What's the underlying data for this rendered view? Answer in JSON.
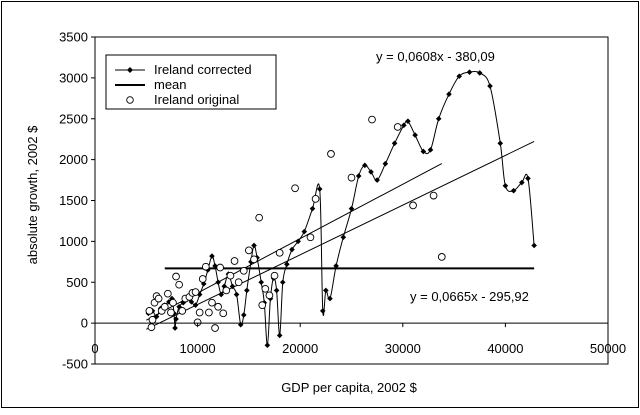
{
  "chart_data": {
    "type": "scatter",
    "title": "",
    "xlabel": "GDP per capita, 2002 $",
    "ylabel": "absolute growth, 2002 $",
    "xlim": [
      0,
      50000
    ],
    "ylim": [
      -500,
      3500
    ],
    "xticks": [
      0,
      10000,
      20000,
      30000,
      40000,
      50000
    ],
    "yticks": [
      -500,
      0,
      500,
      1000,
      1500,
      2000,
      2500,
      3000,
      3500
    ],
    "xtick_labels": [
      "0",
      "10000",
      "20000",
      "30000",
      "40000",
      "50000"
    ],
    "ytick_labels": [
      "-500",
      "0",
      "500",
      "1000",
      "1500",
      "2000",
      "2500",
      "3000",
      "3500"
    ],
    "grid": false,
    "legend_position": "top-left",
    "legend": {
      "corrected": "Ireland corrected",
      "mean": "mean",
      "original": "Ireland original"
    },
    "annotations": {
      "eq_top": "y = 0,0608x - 380,09",
      "eq_bottom": "y = 0,0665x - 295,92"
    },
    "series": [
      {
        "name": "Ireland corrected",
        "marker": "diamond",
        "line": "smooth",
        "points": [
          [
            5200,
            120
          ],
          [
            5600,
            150
          ],
          [
            6000,
            80
          ],
          [
            6400,
            180
          ],
          [
            6800,
            220
          ],
          [
            7200,
            260
          ],
          [
            7500,
            300
          ],
          [
            7700,
            120
          ],
          [
            7800,
            -60
          ],
          [
            7900,
            50
          ],
          [
            8200,
            200
          ],
          [
            8600,
            250
          ],
          [
            9000,
            300
          ],
          [
            9400,
            260
          ],
          [
            9800,
            220
          ],
          [
            10200,
            350
          ],
          [
            10600,
            480
          ],
          [
            11000,
            650
          ],
          [
            11400,
            820
          ],
          [
            11700,
            700
          ],
          [
            12000,
            500
          ],
          [
            12300,
            350
          ],
          [
            12600,
            450
          ],
          [
            13000,
            600
          ],
          [
            13400,
            450
          ],
          [
            13800,
            350
          ],
          [
            14200,
            -20
          ],
          [
            14500,
            100
          ],
          [
            14800,
            400
          ],
          [
            15200,
            750
          ],
          [
            15500,
            950
          ],
          [
            15800,
            800
          ],
          [
            16200,
            500
          ],
          [
            16500,
            250
          ],
          [
            16800,
            -270
          ],
          [
            17100,
            300
          ],
          [
            17400,
            550
          ],
          [
            17700,
            400
          ],
          [
            18000,
            -150
          ],
          [
            18300,
            500
          ],
          [
            18700,
            720
          ],
          [
            19200,
            900
          ],
          [
            19800,
            1000
          ],
          [
            20400,
            1120
          ],
          [
            21200,
            1400
          ],
          [
            21900,
            1640
          ],
          [
            22200,
            150
          ],
          [
            22500,
            400
          ],
          [
            22900,
            300
          ],
          [
            23500,
            700
          ],
          [
            24200,
            1050
          ],
          [
            25000,
            1400
          ],
          [
            25700,
            1800
          ],
          [
            26300,
            1930
          ],
          [
            26900,
            1850
          ],
          [
            27500,
            1750
          ],
          [
            28300,
            1950
          ],
          [
            29200,
            2200
          ],
          [
            30100,
            2420
          ],
          [
            30500,
            2470
          ],
          [
            31200,
            2300
          ],
          [
            32000,
            2100
          ],
          [
            32700,
            2120
          ],
          [
            33500,
            2500
          ],
          [
            34500,
            2800
          ],
          [
            35500,
            3020
          ],
          [
            36500,
            3070
          ],
          [
            37500,
            3060
          ],
          [
            38500,
            2900
          ],
          [
            39500,
            2200
          ],
          [
            40000,
            1680
          ],
          [
            40800,
            1620
          ],
          [
            41600,
            1720
          ],
          [
            42200,
            1770
          ],
          [
            42800,
            950
          ]
        ]
      },
      {
        "name": "Ireland original",
        "marker": "circle",
        "line": "none",
        "points": [
          [
            5300,
            150
          ],
          [
            5500,
            -50
          ],
          [
            5600,
            40
          ],
          [
            5800,
            250
          ],
          [
            6000,
            330
          ],
          [
            6200,
            300
          ],
          [
            6500,
            150
          ],
          [
            6800,
            200
          ],
          [
            7100,
            360
          ],
          [
            7400,
            130
          ],
          [
            7600,
            250
          ],
          [
            7900,
            570
          ],
          [
            8200,
            470
          ],
          [
            8500,
            150
          ],
          [
            8800,
            300
          ],
          [
            9200,
            320
          ],
          [
            9500,
            370
          ],
          [
            9800,
            380
          ],
          [
            10000,
            10
          ],
          [
            10200,
            130
          ],
          [
            10500,
            540
          ],
          [
            10800,
            690
          ],
          [
            11100,
            130
          ],
          [
            11400,
            250
          ],
          [
            11700,
            -60
          ],
          [
            12000,
            200
          ],
          [
            12200,
            680
          ],
          [
            12500,
            120
          ],
          [
            12800,
            400
          ],
          [
            13200,
            580
          ],
          [
            13600,
            760
          ],
          [
            14000,
            500
          ],
          [
            14500,
            640
          ],
          [
            15000,
            890
          ],
          [
            15500,
            780
          ],
          [
            16000,
            1290
          ],
          [
            16300,
            220
          ],
          [
            16600,
            420
          ],
          [
            17000,
            340
          ],
          [
            17500,
            580
          ],
          [
            18000,
            860
          ],
          [
            19500,
            1650
          ],
          [
            21000,
            1050
          ],
          [
            21500,
            1520
          ],
          [
            23000,
            2070
          ],
          [
            25000,
            1780
          ],
          [
            27000,
            2490
          ],
          [
            29500,
            2400
          ],
          [
            31000,
            1440
          ],
          [
            33000,
            1560
          ],
          [
            33800,
            810
          ]
        ]
      }
    ],
    "mean_line": {
      "x_range": [
        6800,
        42800
      ],
      "y": 670
    },
    "trendlines": [
      {
        "name": "corrected trend",
        "slope": 0.0608,
        "intercept": -380.09,
        "x_range": [
          5000,
          42800
        ]
      },
      {
        "name": "original trend",
        "slope": 0.0665,
        "intercept": -295.92,
        "x_range": [
          5000,
          33800
        ]
      }
    ]
  }
}
